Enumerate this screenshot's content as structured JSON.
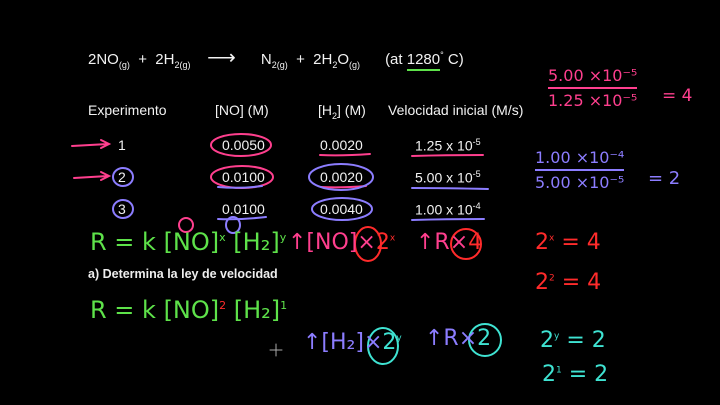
{
  "equation": {
    "reactant1": "2NO",
    "reactant1_state": "(g)",
    "plus1": "+",
    "reactant2": "2H",
    "reactant2_sub": "2(g)",
    "arrow": "⟶",
    "product1": "N",
    "product1_sub": "2(g)",
    "plus2": "+",
    "product2_pre": "2H",
    "product2_sub": "2",
    "product2_post": "O",
    "product2_state": "(g)",
    "condition_open": "(at ",
    "temperature": "1280",
    "degree": "°",
    "condition_close": " C)"
  },
  "table": {
    "headers": [
      "Experimento",
      "[NO]  (M)",
      "[H2] (M)",
      "Velocidad inicial (M/s)"
    ],
    "header_h2_pre": "[H",
    "header_h2_sub": "2",
    "header_h2_post": "] (M)",
    "rows": [
      {
        "exp": "1",
        "no": "0.0050",
        "h2": "0.0020",
        "rate_base": "1.25 x 10",
        "rate_exp": "-5"
      },
      {
        "exp": "2",
        "no": "0.0100",
        "h2": "0.0020",
        "rate_base": "5.00 x 10",
        "rate_exp": "-5"
      },
      {
        "exp": "3",
        "no": "0.0100",
        "h2": "0.0040",
        "rate_base": "1.00 x 10",
        "rate_exp": "-4"
      }
    ]
  },
  "question": "a) Determina la ley de velocidad",
  "handwriting": {
    "rate_law_general": {
      "lhs": "R = k [NO]",
      "exp1": "x",
      "mid": " [H₂]",
      "exp2": "y"
    },
    "rate_law_solved": {
      "lhs": "R = k [NO]",
      "exp1": "2",
      "mid": " [H₂]",
      "exp2": "1"
    },
    "no_change": {
      "text": "↑[NO]×",
      "base": "2",
      "exp": "x"
    },
    "rate_change_4": {
      "text": "↑R×",
      "value": "4"
    },
    "h2_change": {
      "text": "↑[H₂]×",
      "base": "2",
      "exp": "y"
    },
    "rate_change_2": {
      "text": "↑R×",
      "value": "2"
    },
    "ratio1": {
      "num": "5.00 ×10⁻⁵",
      "den": "1.25 ×10⁻⁵",
      "result": "= 4"
    },
    "ratio2": {
      "num": "1.00 ×10⁻⁴",
      "den": "5.00 ×10⁻⁵",
      "result": "= 2"
    },
    "eq_x": {
      "base": "2",
      "exp": "x",
      "rest": " = 4"
    },
    "eq_x_solved": {
      "base": "2",
      "exp": "2",
      "rest": " = 4"
    },
    "eq_y": {
      "base": "2",
      "exp": "y",
      "rest": " = 2"
    },
    "eq_y_solved": {
      "base": "2",
      "exp": "1",
      "rest": " = 2"
    }
  },
  "colors": {
    "green": "#5ee24a",
    "pink": "#ff3f8e",
    "red": "#ff2b2b",
    "purple": "#8c7dff",
    "cyan": "#3fe3d2",
    "background": "#000000"
  }
}
